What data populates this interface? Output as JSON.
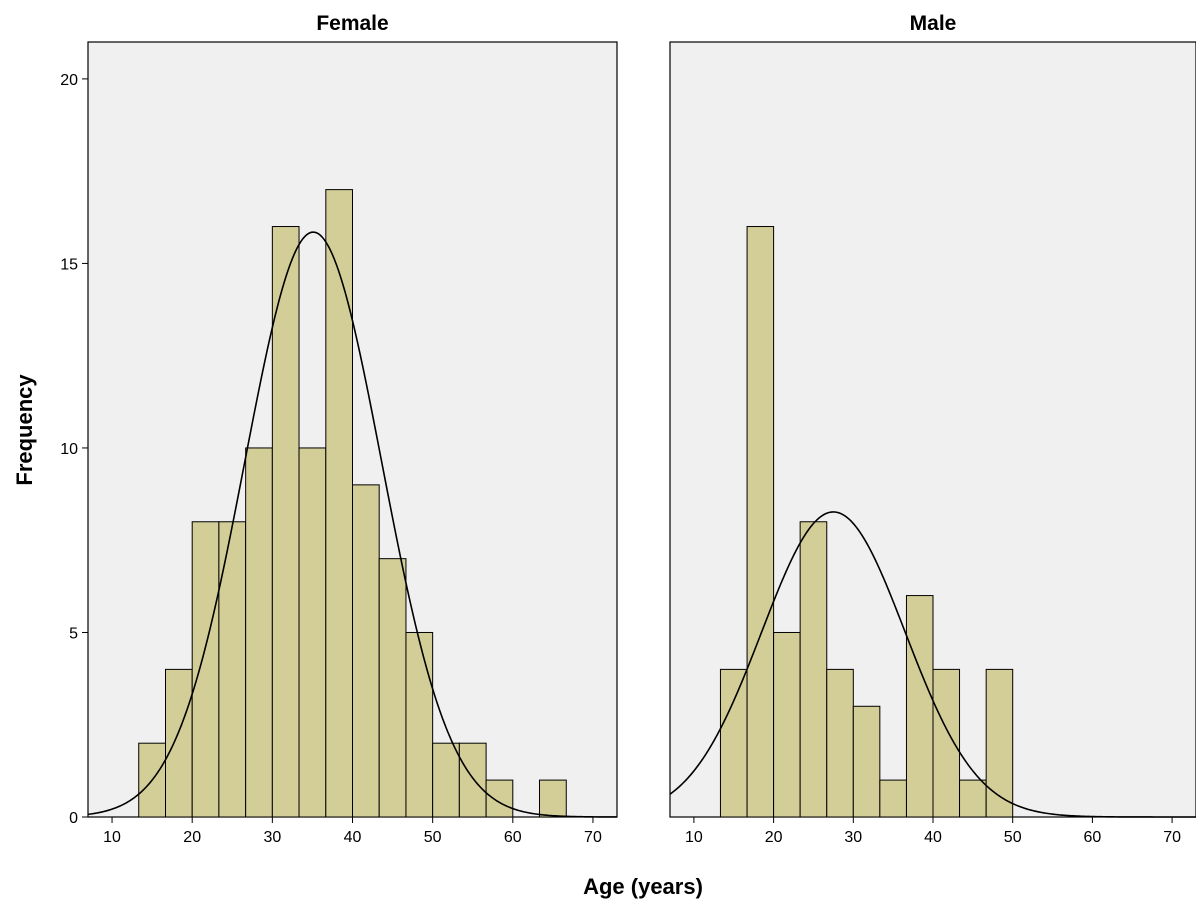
{
  "chart_data": {
    "type": "bar",
    "subtype": "histogram-panels",
    "xlabel": "Age (years)",
    "ylabel": "Frequency",
    "xlim": [
      7,
      73
    ],
    "ylim": [
      0,
      21
    ],
    "xticks": [
      10,
      20,
      30,
      40,
      50,
      60,
      70
    ],
    "yticks": [
      0,
      5,
      10,
      15,
      20
    ],
    "bin_width": 3.33,
    "grid": false,
    "normal_curve": true,
    "panels": [
      {
        "title": "Female",
        "bins": [
          {
            "start": 13.33,
            "end": 16.67,
            "count": 2
          },
          {
            "start": 16.67,
            "end": 20.0,
            "count": 4
          },
          {
            "start": 20.0,
            "end": 23.33,
            "count": 8
          },
          {
            "start": 23.33,
            "end": 26.67,
            "count": 8
          },
          {
            "start": 26.67,
            "end": 30.0,
            "count": 10
          },
          {
            "start": 30.0,
            "end": 33.33,
            "count": 16
          },
          {
            "start": 33.33,
            "end": 36.67,
            "count": 10
          },
          {
            "start": 36.67,
            "end": 40.0,
            "count": 17
          },
          {
            "start": 40.0,
            "end": 43.33,
            "count": 9
          },
          {
            "start": 43.33,
            "end": 46.67,
            "count": 7
          },
          {
            "start": 46.67,
            "end": 50.0,
            "count": 5
          },
          {
            "start": 50.0,
            "end": 53.33,
            "count": 2
          },
          {
            "start": 53.33,
            "end": 56.67,
            "count": 2
          },
          {
            "start": 56.67,
            "end": 60.0,
            "count": 1
          },
          {
            "start": 63.33,
            "end": 66.67,
            "count": 1
          }
        ],
        "curve": {
          "mean": 35.1,
          "sd": 8.55,
          "n": 102
        }
      },
      {
        "title": "Male",
        "bins": [
          {
            "start": 13.33,
            "end": 16.67,
            "count": 4
          },
          {
            "start": 16.67,
            "end": 20.0,
            "count": 16
          },
          {
            "start": 20.0,
            "end": 23.33,
            "count": 5
          },
          {
            "start": 23.33,
            "end": 26.67,
            "count": 8
          },
          {
            "start": 26.67,
            "end": 30.0,
            "count": 4
          },
          {
            "start": 30.0,
            "end": 33.33,
            "count": 3
          },
          {
            "start": 33.33,
            "end": 36.67,
            "count": 1
          },
          {
            "start": 36.67,
            "end": 40.0,
            "count": 6
          },
          {
            "start": 40.0,
            "end": 43.33,
            "count": 4
          },
          {
            "start": 43.33,
            "end": 46.67,
            "count": 1
          },
          {
            "start": 46.67,
            "end": 50.0,
            "count": 4
          }
        ],
        "curve": {
          "mean": 27.5,
          "sd": 9.0,
          "n": 56
        }
      }
    ]
  }
}
